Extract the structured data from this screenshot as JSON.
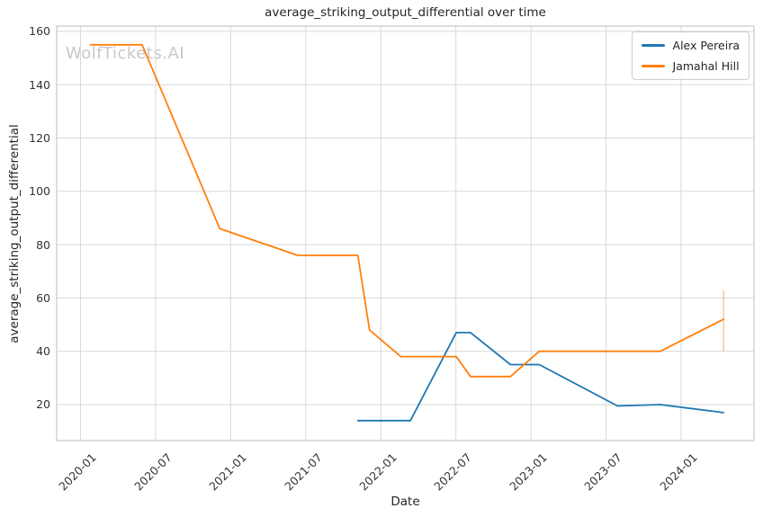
{
  "chart_data": {
    "type": "line",
    "title": "average_striking_output_differential over time",
    "xlabel": "Date",
    "ylabel": "average_striking_output_differential",
    "watermark": "WolfTickets.AI",
    "grid": true,
    "legend_position": "upper right",
    "x_ticks": [
      "2020-01",
      "2020-07",
      "2021-01",
      "2021-07",
      "2022-01",
      "2022-07",
      "2023-01",
      "2023-07",
      "2024-01"
    ],
    "y_ticks": [
      20,
      40,
      60,
      80,
      100,
      120,
      140,
      160
    ],
    "xlim": [
      "2019-11-04",
      "2024-06-26"
    ],
    "ylim": [
      6.5,
      162
    ],
    "series": [
      {
        "name": "Alex Pereira",
        "color": "#1f77b4",
        "points": [
          [
            "2021-11-06",
            14
          ],
          [
            "2022-03-12",
            14
          ],
          [
            "2022-07-02",
            47
          ],
          [
            "2022-08-06",
            47
          ],
          [
            "2022-11-12",
            35
          ],
          [
            "2023-01-21",
            35
          ],
          [
            "2023-07-29",
            19.5
          ],
          [
            "2023-11-11",
            20
          ],
          [
            "2024-04-13",
            17
          ]
        ]
      },
      {
        "name": "Jamahal Hill",
        "color": "#ff7f0e",
        "points": [
          [
            "2020-01-25",
            155
          ],
          [
            "2020-05-29",
            155
          ],
          [
            "2020-12-05",
            86
          ],
          [
            "2021-06-12",
            76
          ],
          [
            "2021-11-06",
            76
          ],
          [
            "2021-12-04",
            48
          ],
          [
            "2022-02-19",
            38
          ],
          [
            "2022-07-02",
            38
          ],
          [
            "2022-08-06",
            30.5
          ],
          [
            "2022-11-12",
            30.5
          ],
          [
            "2023-01-21",
            40
          ],
          [
            "2023-11-11",
            40
          ],
          [
            "2024-04-13",
            52
          ]
        ]
      }
    ],
    "error_bar": {
      "series": "Jamahal Hill",
      "x": "2024-04-13",
      "low": 40,
      "high": 63
    }
  }
}
